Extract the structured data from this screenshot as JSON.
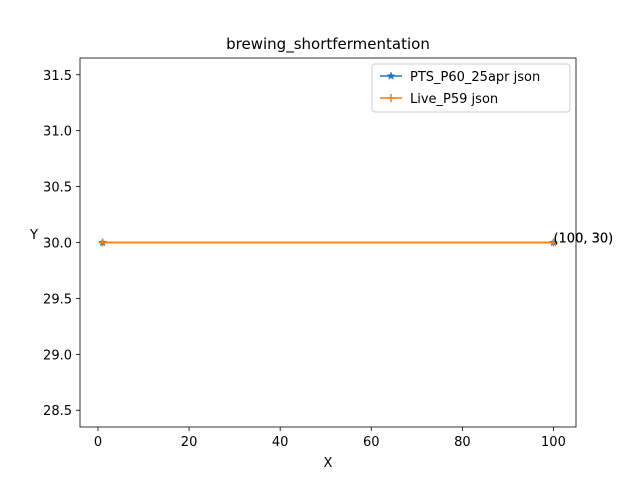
{
  "chart_data": {
    "type": "line",
    "title": "brewing_shortfermentation",
    "xlabel": "X",
    "ylabel": "Y",
    "xlim": [
      -3.95,
      104.95
    ],
    "ylim": [
      28.35,
      31.65
    ],
    "xticks": [
      0,
      20,
      40,
      60,
      80,
      100
    ],
    "yticks": [
      28.5,
      29.0,
      29.5,
      30.0,
      30.5,
      31.0,
      31.5
    ],
    "xtick_labels": [
      "0",
      "20",
      "40",
      "60",
      "80",
      "100"
    ],
    "ytick_labels": [
      "28.5",
      "29.0",
      "29.5",
      "30.0",
      "30.5",
      "31.0",
      "31.5"
    ],
    "grid": false,
    "legend_position": "top-right",
    "series": [
      {
        "name": "PTS_P60_25apr json",
        "color": "#1f77b4",
        "marker": "star",
        "x": [
          1,
          100
        ],
        "y": [
          30,
          30
        ]
      },
      {
        "name": "Live_P59 json",
        "color": "#ff7f0e",
        "marker": "plus",
        "x": [
          1,
          100
        ],
        "y": [
          30,
          30
        ]
      }
    ],
    "annotations": [
      {
        "text": "(100, 30)",
        "x": 100,
        "y": 30
      },
      {
        "text": "(100, 30)",
        "x": 100,
        "y": 30
      }
    ]
  }
}
